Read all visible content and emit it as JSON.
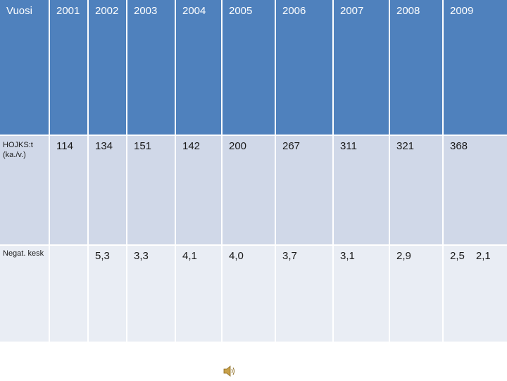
{
  "table": {
    "header": [
      "Vuosi",
      "2001",
      "2002",
      "2003",
      "2004",
      "2005",
      "2006",
      "2007",
      "2008",
      "2009"
    ],
    "rows": [
      {
        "label_line1": "HOJKS:t",
        "label_line2": "(ka./v.)",
        "values": [
          "114",
          "134",
          "151",
          "142",
          "200",
          "267",
          "311",
          "321",
          "368"
        ]
      },
      {
        "label": "Negat. kesk",
        "values": [
          "",
          "5,3",
          "3,3",
          "4,1",
          "4,0",
          "3,7",
          "3,1",
          "2,9",
          "2,5"
        ],
        "extra": "2,1"
      }
    ]
  },
  "audio": {
    "icon": "speaker-icon"
  },
  "colors": {
    "header_bg": "#4f81bd",
    "row1_bg": "#d0d8e8",
    "row2_bg": "#e9edf4"
  }
}
